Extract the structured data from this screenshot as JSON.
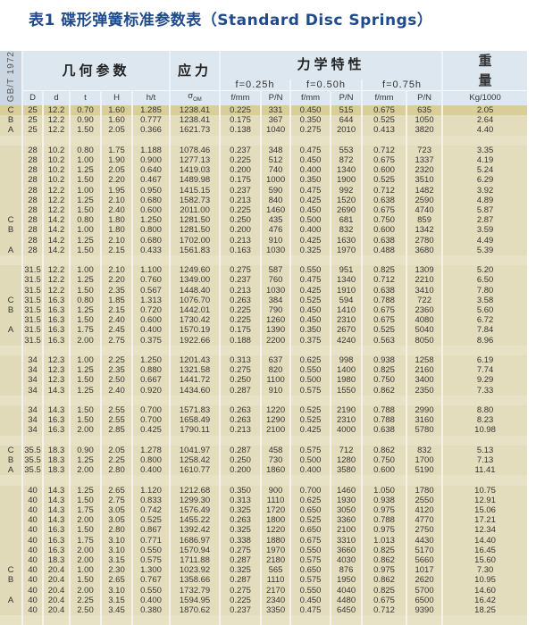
{
  "title": "表1 碟形弹簧标准参数表（Standard Disc Springs）",
  "header": {
    "standard": "GB/T 1972",
    "geometry": "几何参数",
    "stress": "应力",
    "mechanics": "力学特性",
    "weight_top": "重",
    "weight_bottom": "量",
    "deflections": [
      "f=0.25h",
      "f=0.50h",
      "f=0.75h"
    ],
    "columns": [
      "D",
      "d",
      "t",
      "H",
      "h/t",
      "σ",
      "f/mm",
      "P/N",
      "f/mm",
      "P/N",
      "f/mm",
      "P/N",
      "Kg/1000"
    ],
    "sigma_sub": "OM"
  },
  "rows": [
    [
      "C",
      "25",
      "12.2",
      "0.70",
      "1.60",
      "1.285",
      "1238.41",
      "0.225",
      "331",
      "0.450",
      "515",
      "0.675",
      "635",
      "2.05"
    ],
    [
      "B",
      "25",
      "12.2",
      "0.90",
      "1.60",
      "0.777",
      "1238.41",
      "0.175",
      "367",
      "0.350",
      "644",
      "0.525",
      "1050",
      "2.64"
    ],
    [
      "A",
      "25",
      "12.2",
      "1.50",
      "2.05",
      "0.366",
      "1621.73",
      "0.138",
      "1040",
      "0.275",
      "2010",
      "0.413",
      "3820",
      "4.40"
    ],
    null,
    [
      "",
      "28",
      "10.2",
      "0.80",
      "1.75",
      "1.188",
      "1078.46",
      "0.237",
      "348",
      "0.475",
      "553",
      "0.712",
      "723",
      "3.35"
    ],
    [
      "",
      "28",
      "10.2",
      "1.00",
      "1.90",
      "0.900",
      "1277.13",
      "0.225",
      "512",
      "0.450",
      "872",
      "0.675",
      "1337",
      "4.19"
    ],
    [
      "",
      "28",
      "10.2",
      "1.25",
      "2.05",
      "0.640",
      "1419.03",
      "0.200",
      "740",
      "0.400",
      "1340",
      "0.600",
      "2320",
      "5.24"
    ],
    [
      "",
      "28",
      "10.2",
      "1.50",
      "2.20",
      "0.467",
      "1489.98",
      "0.175",
      "1000",
      "0.350",
      "1900",
      "0.525",
      "3510",
      "6.29"
    ],
    [
      "",
      "28",
      "12.2",
      "1.00",
      "1.95",
      "0.950",
      "1415.15",
      "0.237",
      "590",
      "0.475",
      "992",
      "0.712",
      "1482",
      "3.92"
    ],
    [
      "",
      "28",
      "12.2",
      "1.25",
      "2.10",
      "0.680",
      "1582.73",
      "0.213",
      "840",
      "0.425",
      "1520",
      "0.638",
      "2590",
      "4.89"
    ],
    [
      "",
      "28",
      "12.2",
      "1.50",
      "2.40",
      "0.600",
      "2011.00",
      "0.225",
      "1460",
      "0.450",
      "2690",
      "0.675",
      "4740",
      "5.87"
    ],
    [
      "C",
      "28",
      "14.2",
      "0.80",
      "1.80",
      "1.250",
      "1281.50",
      "0.250",
      "435",
      "0.500",
      "681",
      "0.750",
      "859",
      "2.87"
    ],
    [
      "B",
      "28",
      "14.2",
      "1.00",
      "1.80",
      "0.800",
      "1281.50",
      "0.200",
      "476",
      "0.400",
      "832",
      "0.600",
      "1342",
      "3.59"
    ],
    [
      "",
      "28",
      "14.2",
      "1.25",
      "2.10",
      "0.680",
      "1702.00",
      "0.213",
      "910",
      "0.425",
      "1630",
      "0.638",
      "2780",
      "4.49"
    ],
    [
      "A",
      "28",
      "14.2",
      "1.50",
      "2.15",
      "0.433",
      "1561.83",
      "0.163",
      "1030",
      "0.325",
      "1970",
      "0.488",
      "3680",
      "5.39"
    ],
    null,
    [
      "",
      "31.5",
      "12.2",
      "1.00",
      "2.10",
      "1.100",
      "1249.60",
      "0.275",
      "587",
      "0.550",
      "951",
      "0.825",
      "1309",
      "5.20"
    ],
    [
      "",
      "31.5",
      "12.2",
      "1.25",
      "2.20",
      "0.760",
      "1349.00",
      "0.237",
      "760",
      "0.475",
      "1340",
      "0.712",
      "2210",
      "6.50"
    ],
    [
      "",
      "31.5",
      "12.2",
      "1.50",
      "2.35",
      "0.567",
      "1448.40",
      "0.213",
      "1030",
      "0.425",
      "1910",
      "0.638",
      "3410",
      "7.80"
    ],
    [
      "C",
      "31.5",
      "16.3",
      "0.80",
      "1.85",
      "1.313",
      "1076.70",
      "0.263",
      "384",
      "0.525",
      "594",
      "0.788",
      "722",
      "3.58"
    ],
    [
      "B",
      "31.5",
      "16.3",
      "1.25",
      "2.15",
      "0.720",
      "1442.01",
      "0.225",
      "790",
      "0.450",
      "1410",
      "0.675",
      "2360",
      "5.60"
    ],
    [
      "",
      "31.5",
      "16.3",
      "1.50",
      "2.40",
      "0.600",
      "1730.42",
      "0.225",
      "1260",
      "0.450",
      "2310",
      "0.675",
      "4080",
      "6.72"
    ],
    [
      "A",
      "31.5",
      "16.3",
      "1.75",
      "2.45",
      "0.400",
      "1570.19",
      "0.175",
      "1390",
      "0.350",
      "2670",
      "0.525",
      "5040",
      "7.84"
    ],
    [
      "",
      "31.5",
      "16.3",
      "2.00",
      "2.75",
      "0.375",
      "1922.66",
      "0.188",
      "2200",
      "0.375",
      "4240",
      "0.563",
      "8050",
      "8.96"
    ],
    null,
    [
      "",
      "34",
      "12.3",
      "1.00",
      "2.25",
      "1.250",
      "1201.43",
      "0.313",
      "637",
      "0.625",
      "998",
      "0.938",
      "1258",
      "6.19"
    ],
    [
      "",
      "34",
      "12.3",
      "1.25",
      "2.35",
      "0.880",
      "1321.58",
      "0.275",
      "820",
      "0.550",
      "1400",
      "0.825",
      "2160",
      "7.74"
    ],
    [
      "",
      "34",
      "12.3",
      "1.50",
      "2.50",
      "0.667",
      "1441.72",
      "0.250",
      "1100",
      "0.500",
      "1980",
      "0.750",
      "3400",
      "9.29"
    ],
    [
      "",
      "34",
      "14.3",
      "1.25",
      "2.40",
      "0.920",
      "1434.60",
      "0.287",
      "910",
      "0.575",
      "1550",
      "0.862",
      "2350",
      "7.33"
    ],
    null,
    [
      "",
      "34",
      "14.3",
      "1.50",
      "2.55",
      "0.700",
      "1571.83",
      "0.263",
      "1220",
      "0.525",
      "2190",
      "0.788",
      "2990",
      "8.80"
    ],
    [
      "",
      "34",
      "16.3",
      "1.50",
      "2.55",
      "0.700",
      "1658.49",
      "0.263",
      "1290",
      "0.525",
      "2310",
      "0.788",
      "3160",
      "8.23"
    ],
    [
      "",
      "34",
      "16.3",
      "2.00",
      "2.85",
      "0.425",
      "1790.11",
      "0.213",
      "2100",
      "0.425",
      "4000",
      "0.638",
      "5780",
      "10.98"
    ],
    null,
    [
      "C",
      "35.5",
      "18.3",
      "0.90",
      "2.05",
      "1.278",
      "1041.97",
      "0.287",
      "458",
      "0.575",
      "712",
      "0.862",
      "832",
      "5.13"
    ],
    [
      "B",
      "35.5",
      "18.3",
      "1.25",
      "2.25",
      "0.800",
      "1258.42",
      "0.250",
      "730",
      "0.500",
      "1280",
      "0.750",
      "1700",
      "7.13"
    ],
    [
      "A",
      "35.5",
      "18.3",
      "2.00",
      "2.80",
      "0.400",
      "1610.77",
      "0.200",
      "1860",
      "0.400",
      "3580",
      "0.600",
      "5190",
      "11.41"
    ],
    null,
    [
      "",
      "40",
      "14.3",
      "1.25",
      "2.65",
      "1.120",
      "1212.68",
      "0.350",
      "900",
      "0.700",
      "1460",
      "1.050",
      "1780",
      "10.75"
    ],
    [
      "",
      "40",
      "14.3",
      "1.50",
      "2.75",
      "0.833",
      "1299.30",
      "0.313",
      "1110",
      "0.625",
      "1930",
      "0.938",
      "2550",
      "12.91"
    ],
    [
      "",
      "40",
      "14.3",
      "1.75",
      "3.05",
      "0.742",
      "1576.49",
      "0.325",
      "1720",
      "0.650",
      "3050",
      "0.975",
      "4120",
      "15.06"
    ],
    [
      "",
      "40",
      "14.3",
      "2.00",
      "3.05",
      "0.525",
      "1455.22",
      "0.263",
      "1800",
      "0.525",
      "3360",
      "0.788",
      "4770",
      "17.21"
    ],
    [
      "",
      "40",
      "16.3",
      "1.50",
      "2.80",
      "0.867",
      "1392.42",
      "0.325",
      "1220",
      "0.650",
      "2100",
      "0.975",
      "2750",
      "12.34"
    ],
    [
      "",
      "40",
      "16.3",
      "1.75",
      "3.10",
      "0.771",
      "1686.97",
      "0.338",
      "1880",
      "0.675",
      "3310",
      "1.013",
      "4430",
      "14.40"
    ],
    [
      "",
      "40",
      "16.3",
      "2.00",
      "3.10",
      "0.550",
      "1570.94",
      "0.275",
      "1970",
      "0.550",
      "3660",
      "0.825",
      "5170",
      "16.45"
    ],
    [
      "",
      "40",
      "18.3",
      "2.00",
      "3.15",
      "0.575",
      "1711.88",
      "0.287",
      "2180",
      "0.575",
      "4030",
      "0.862",
      "5660",
      "15.60"
    ],
    [
      "C",
      "40",
      "20.4",
      "1.00",
      "2.30",
      "1.300",
      "1023.92",
      "0.325",
      "565",
      "0.650",
      "876",
      "0.975",
      "1017",
      "7.30"
    ],
    [
      "B",
      "40",
      "20.4",
      "1.50",
      "2.65",
      "0.767",
      "1358.66",
      "0.287",
      "1110",
      "0.575",
      "1950",
      "0.862",
      "2620",
      "10.95"
    ],
    [
      "",
      "40",
      "20.4",
      "2.00",
      "3.10",
      "0.550",
      "1732.79",
      "0.275",
      "2170",
      "0.550",
      "4040",
      "0.825",
      "5700",
      "14.60"
    ],
    [
      "A",
      "40",
      "20.4",
      "2.25",
      "3.15",
      "0.400",
      "1594.95",
      "0.225",
      "2340",
      "0.450",
      "4480",
      "0.675",
      "6500",
      "16.42"
    ],
    [
      "",
      "40",
      "20.4",
      "2.50",
      "3.45",
      "0.380",
      "1870.62",
      "0.237",
      "3350",
      "0.475",
      "6450",
      "0.712",
      "9390",
      "18.25"
    ],
    null
  ]
}
